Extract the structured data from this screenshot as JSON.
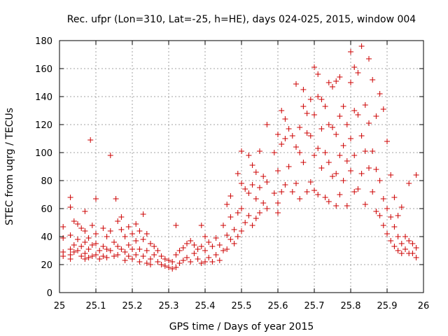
{
  "chart_data": {
    "type": "scatter",
    "title": "Rec. ufpr (Lon=310, Lat=-25, h=HE), days 024-025, 2015, window 004",
    "xlabel": "GPS time / Days of year 2015",
    "ylabel": "STEC from uqrg / TECUs",
    "xlim": [
      25,
      26
    ],
    "ylim": [
      0,
      180
    ],
    "xticks": [
      "25",
      "25.1",
      "25.2",
      "25.3",
      "25.4",
      "25.5",
      "25.6",
      "25.7",
      "25.8",
      "25.9",
      "26"
    ],
    "yticks": [
      "0",
      "20",
      "40",
      "60",
      "80",
      "100",
      "120",
      "140",
      "160",
      "180"
    ],
    "grid": true,
    "marker": "plus",
    "color": "#cc0000",
    "points": [
      [
        25.01,
        47
      ],
      [
        25.01,
        39
      ],
      [
        25.01,
        29
      ],
      [
        25.01,
        26
      ],
      [
        25.03,
        68
      ],
      [
        25.03,
        61
      ],
      [
        25.03,
        41
      ],
      [
        25.03,
        31
      ],
      [
        25.03,
        27
      ],
      [
        25.03,
        24
      ],
      [
        25.04,
        51
      ],
      [
        25.04,
        34
      ],
      [
        25.04,
        29
      ],
      [
        25.05,
        49
      ],
      [
        25.05,
        38
      ],
      [
        25.05,
        30
      ],
      [
        25.06,
        46
      ],
      [
        25.06,
        33
      ],
      [
        25.06,
        26
      ],
      [
        25.07,
        58
      ],
      [
        25.07,
        44
      ],
      [
        25.07,
        36
      ],
      [
        25.07,
        28
      ],
      [
        25.07,
        24
      ],
      [
        25.08,
        39
      ],
      [
        25.08,
        31
      ],
      [
        25.08,
        25
      ],
      [
        25.085,
        109
      ],
      [
        25.09,
        48
      ],
      [
        25.09,
        34
      ],
      [
        25.09,
        26
      ],
      [
        25.1,
        67
      ],
      [
        25.1,
        42
      ],
      [
        25.1,
        35
      ],
      [
        25.1,
        27
      ],
      [
        25.11,
        30
      ],
      [
        25.11,
        24
      ],
      [
        25.12,
        46
      ],
      [
        25.12,
        33
      ],
      [
        25.12,
        26
      ],
      [
        25.13,
        40
      ],
      [
        25.13,
        31
      ],
      [
        25.13,
        25
      ],
      [
        25.14,
        98
      ],
      [
        25.14,
        44
      ],
      [
        25.14,
        30
      ],
      [
        25.15,
        36
      ],
      [
        25.15,
        26
      ],
      [
        25.155,
        67
      ],
      [
        25.16,
        51
      ],
      [
        25.16,
        33
      ],
      [
        25.16,
        27
      ],
      [
        25.17,
        54
      ],
      [
        25.17,
        45
      ],
      [
        25.17,
        31
      ],
      [
        25.18,
        40
      ],
      [
        25.18,
        29
      ],
      [
        25.18,
        23
      ],
      [
        25.19,
        47
      ],
      [
        25.19,
        34
      ],
      [
        25.19,
        26
      ],
      [
        25.2,
        42
      ],
      [
        25.2,
        31
      ],
      [
        25.2,
        24
      ],
      [
        25.21,
        49
      ],
      [
        25.21,
        37
      ],
      [
        25.21,
        27
      ],
      [
        25.22,
        44
      ],
      [
        25.22,
        31
      ],
      [
        25.22,
        22
      ],
      [
        25.23,
        56
      ],
      [
        25.23,
        38
      ],
      [
        25.23,
        26
      ],
      [
        25.24,
        42
      ],
      [
        25.24,
        30
      ],
      [
        25.24,
        21
      ],
      [
        25.25,
        35
      ],
      [
        25.25,
        24
      ],
      [
        25.25,
        20
      ],
      [
        25.26,
        33
      ],
      [
        25.26,
        27
      ],
      [
        25.27,
        30
      ],
      [
        25.27,
        22
      ],
      [
        25.28,
        26
      ],
      [
        25.28,
        20
      ],
      [
        25.29,
        24
      ],
      [
        25.29,
        19
      ],
      [
        25.3,
        23
      ],
      [
        25.3,
        18
      ],
      [
        25.31,
        22
      ],
      [
        25.31,
        17
      ],
      [
        25.32,
        48
      ],
      [
        25.32,
        27
      ],
      [
        25.32,
        18
      ],
      [
        25.33,
        30
      ],
      [
        25.33,
        21
      ],
      [
        25.34,
        32
      ],
      [
        25.34,
        23
      ],
      [
        25.35,
        35
      ],
      [
        25.35,
        25
      ],
      [
        25.36,
        37
      ],
      [
        25.36,
        22
      ],
      [
        25.37,
        34
      ],
      [
        25.37,
        28
      ],
      [
        25.38,
        31
      ],
      [
        25.38,
        24
      ],
      [
        25.39,
        48
      ],
      [
        25.39,
        33
      ],
      [
        25.39,
        21
      ],
      [
        25.4,
        40
      ],
      [
        25.4,
        30
      ],
      [
        25.4,
        22
      ],
      [
        25.41,
        36
      ],
      [
        25.41,
        25
      ],
      [
        25.42,
        33
      ],
      [
        25.42,
        22
      ],
      [
        25.43,
        39
      ],
      [
        25.43,
        27
      ],
      [
        25.44,
        34
      ],
      [
        25.44,
        23
      ],
      [
        25.45,
        48
      ],
      [
        25.45,
        30
      ],
      [
        25.46,
        63
      ],
      [
        25.46,
        41
      ],
      [
        25.46,
        31
      ],
      [
        25.47,
        69
      ],
      [
        25.47,
        54
      ],
      [
        25.47,
        38
      ],
      [
        25.48,
        45
      ],
      [
        25.48,
        35
      ],
      [
        25.49,
        85
      ],
      [
        25.49,
        57
      ],
      [
        25.49,
        40
      ],
      [
        25.5,
        101
      ],
      [
        25.5,
        78
      ],
      [
        25.5,
        60
      ],
      [
        25.5,
        44
      ],
      [
        25.51,
        74
      ],
      [
        25.51,
        50
      ],
      [
        25.52,
        98
      ],
      [
        25.52,
        71
      ],
      [
        25.52,
        55
      ],
      [
        25.53,
        91
      ],
      [
        25.53,
        77
      ],
      [
        25.53,
        48
      ],
      [
        25.54,
        86
      ],
      [
        25.54,
        67
      ],
      [
        25.54,
        53
      ],
      [
        25.55,
        101
      ],
      [
        25.55,
        75
      ],
      [
        25.55,
        57
      ],
      [
        25.56,
        83
      ],
      [
        25.56,
        64
      ],
      [
        25.57,
        120
      ],
      [
        25.57,
        79
      ],
      [
        25.57,
        60
      ],
      [
        25.59,
        100
      ],
      [
        25.59,
        71
      ],
      [
        25.6,
        113
      ],
      [
        25.6,
        87
      ],
      [
        25.6,
        64
      ],
      [
        25.6,
        57
      ],
      [
        25.61,
        130
      ],
      [
        25.61,
        106
      ],
      [
        25.61,
        72
      ],
      [
        25.62,
        124
      ],
      [
        25.62,
        110
      ],
      [
        25.62,
        77
      ],
      [
        25.63,
        117
      ],
      [
        25.63,
        90
      ],
      [
        25.64,
        112
      ],
      [
        25.64,
        72
      ],
      [
        25.65,
        149
      ],
      [
        25.65,
        104
      ],
      [
        25.65,
        78
      ],
      [
        25.66,
        118
      ],
      [
        25.66,
        100
      ],
      [
        25.66,
        67
      ],
      [
        25.67,
        145
      ],
      [
        25.67,
        133
      ],
      [
        25.67,
        93
      ],
      [
        25.68,
        128
      ],
      [
        25.68,
        114
      ],
      [
        25.68,
        72
      ],
      [
        25.69,
        138
      ],
      [
        25.69,
        112
      ],
      [
        25.69,
        79
      ],
      [
        25.7,
        161
      ],
      [
        25.7,
        127
      ],
      [
        25.7,
        98
      ],
      [
        25.7,
        73
      ],
      [
        25.71,
        156
      ],
      [
        25.71,
        140
      ],
      [
        25.71,
        103
      ],
      [
        25.71,
        70
      ],
      [
        25.72,
        138
      ],
      [
        25.72,
        117
      ],
      [
        25.72,
        89
      ],
      [
        25.73,
        133
      ],
      [
        25.73,
        100
      ],
      [
        25.73,
        68
      ],
      [
        25.74,
        150
      ],
      [
        25.74,
        120
      ],
      [
        25.74,
        93
      ],
      [
        25.74,
        65
      ],
      [
        25.75,
        147
      ],
      [
        25.75,
        118
      ],
      [
        25.75,
        83
      ],
      [
        25.76,
        151
      ],
      [
        25.76,
        113
      ],
      [
        25.76,
        85
      ],
      [
        25.76,
        62
      ],
      [
        25.77,
        154
      ],
      [
        25.77,
        126
      ],
      [
        25.77,
        98
      ],
      [
        25.77,
        70
      ],
      [
        25.78,
        133
      ],
      [
        25.78,
        105
      ],
      [
        25.78,
        80
      ],
      [
        25.79,
        120
      ],
      [
        25.79,
        94
      ],
      [
        25.79,
        62
      ],
      [
        25.8,
        172
      ],
      [
        25.8,
        150
      ],
      [
        25.8,
        110
      ],
      [
        25.8,
        87
      ],
      [
        25.81,
        161
      ],
      [
        25.81,
        130
      ],
      [
        25.81,
        98
      ],
      [
        25.81,
        72
      ],
      [
        25.82,
        157
      ],
      [
        25.82,
        127
      ],
      [
        25.82,
        74
      ],
      [
        25.83,
        176
      ],
      [
        25.83,
        112
      ],
      [
        25.83,
        85
      ],
      [
        25.84,
        134
      ],
      [
        25.84,
        101
      ],
      [
        25.84,
        63
      ],
      [
        25.85,
        167
      ],
      [
        25.85,
        121
      ],
      [
        25.85,
        89
      ],
      [
        25.86,
        152
      ],
      [
        25.86,
        101
      ],
      [
        25.86,
        72
      ],
      [
        25.87,
        126
      ],
      [
        25.87,
        88
      ],
      [
        25.87,
        58
      ],
      [
        25.88,
        142
      ],
      [
        25.88,
        80
      ],
      [
        25.88,
        55
      ],
      [
        25.89,
        131
      ],
      [
        25.89,
        67
      ],
      [
        25.89,
        48
      ],
      [
        25.9,
        108
      ],
      [
        25.9,
        60
      ],
      [
        25.9,
        42
      ],
      [
        25.91,
        84
      ],
      [
        25.91,
        54
      ],
      [
        25.91,
        37
      ],
      [
        25.92,
        68
      ],
      [
        25.92,
        47
      ],
      [
        25.92,
        33
      ],
      [
        25.93,
        55
      ],
      [
        25.93,
        40
      ],
      [
        25.93,
        30
      ],
      [
        25.94,
        61
      ],
      [
        25.94,
        35
      ],
      [
        25.94,
        28
      ],
      [
        25.95,
        40
      ],
      [
        25.95,
        31
      ],
      [
        25.96,
        78
      ],
      [
        25.96,
        37
      ],
      [
        25.96,
        28
      ],
      [
        25.97,
        35
      ],
      [
        25.97,
        28
      ],
      [
        25.98,
        84
      ],
      [
        25.98,
        32
      ],
      [
        25.98,
        25
      ]
    ]
  }
}
